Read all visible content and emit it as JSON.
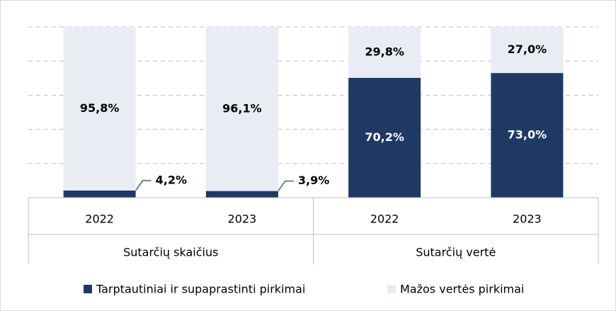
{
  "chart_data": {
    "type": "bar",
    "stacked": true,
    "categories": [
      "2022",
      "2023",
      "2022",
      "2023"
    ],
    "groups": [
      "Sutarčių skaičius",
      "Sutarčių vertė"
    ],
    "series": [
      {
        "name": "Tarptautiniai ir supaprastinti pirkimai",
        "color": "#203864",
        "values": [
          4.2,
          3.9,
          70.2,
          73.0
        ],
        "value_labels": [
          "4,2%",
          "3,9%",
          "70,2%",
          "73,0%"
        ]
      },
      {
        "name": "Mažos vertės pirkimai",
        "color": "#e9ecf3",
        "values": [
          95.8,
          96.1,
          29.8,
          27.0
        ],
        "value_labels": [
          "95,8%",
          "96,1%",
          "29,8%",
          "27,0%"
        ]
      }
    ],
    "ylim": [
      0,
      100
    ],
    "yticks": [
      0,
      20,
      40,
      60,
      80,
      100
    ],
    "grid": true,
    "legend": "bottom"
  }
}
